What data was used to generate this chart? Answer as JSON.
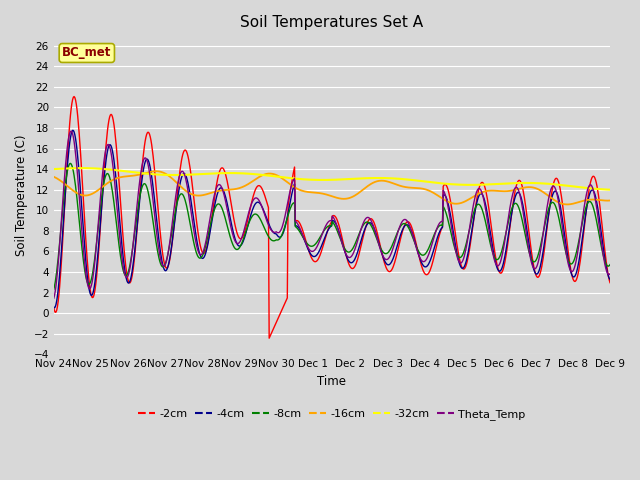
{
  "title": "Soil Temperatures Set A",
  "xlabel": "Time",
  "ylabel": "Soil Temperature (C)",
  "ylim": [
    -4,
    27
  ],
  "yticks": [
    -4,
    -2,
    0,
    2,
    4,
    6,
    8,
    10,
    12,
    14,
    16,
    18,
    20,
    22,
    24,
    26
  ],
  "xtick_labels": [
    "Nov 24",
    "Nov 25",
    "Nov 26",
    "Nov 27",
    "Nov 28",
    "Nov 29",
    "Nov 30",
    "Dec 1",
    "Dec 2",
    "Dec 3",
    "Dec 4",
    "Dec 5",
    "Dec 6",
    "Dec 7",
    "Dec 8",
    "Dec 9"
  ],
  "annotation": "BC_met",
  "colors": {
    "-2cm": "#ff0000",
    "-4cm": "#00008b",
    "-8cm": "#008000",
    "-16cm": "#ffa500",
    "-32cm": "#ffff00",
    "Theta_Temp": "#800080"
  },
  "fig_facecolor": "#d8d8d8",
  "ax_facecolor": "#d8d8d8",
  "title_fontsize": 11,
  "legend_labels": [
    "-2cm",
    "-4cm",
    "-8cm",
    "-16cm",
    "-32cm",
    "Theta_Temp"
  ]
}
